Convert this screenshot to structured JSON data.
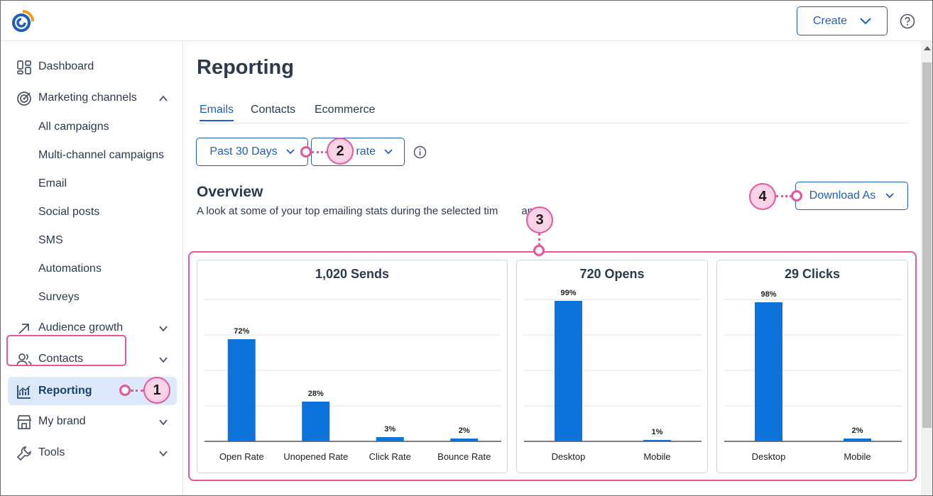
{
  "header": {
    "create_label": "Create"
  },
  "sidebar": {
    "items": [
      {
        "label": "Dashboard",
        "icon": "dashboard-icon"
      },
      {
        "label": "Marketing channels",
        "icon": "target-icon"
      },
      {
        "label": "Audience growth",
        "icon": "arrow-up-right-icon"
      },
      {
        "label": "Contacts",
        "icon": "people-icon"
      },
      {
        "label": "Reporting",
        "icon": "chart-icon"
      },
      {
        "label": "My brand",
        "icon": "store-icon"
      },
      {
        "label": "Tools",
        "icon": "wrench-icon"
      }
    ],
    "subitems": [
      "All campaigns",
      "Multi-channel campaigns",
      "Email",
      "Social posts",
      "SMS",
      "Automations",
      "Surveys"
    ]
  },
  "main": {
    "title": "Reporting",
    "tabs": [
      "Emails",
      "Contacts",
      "Ecommerce"
    ],
    "date_filter": "Past 30 Days",
    "rate_filter": "rate",
    "overview_title": "Overview",
    "overview_sub": "A look at some of your top emailing stats during the selected tim",
    "overview_sub_end": "ange.",
    "download_label": "Download As"
  },
  "callouts": [
    "1",
    "2",
    "3",
    "4"
  ],
  "colors": {
    "accent": "#1c5fbf",
    "bar": "#0b73d9",
    "highlight": "#e6569a"
  },
  "chart_data": [
    {
      "type": "bar",
      "title": "1,020 Sends",
      "categories": [
        "Open Rate",
        "Unopened Rate",
        "Click Rate",
        "Bounce Rate"
      ],
      "values": [
        72,
        28,
        3,
        2
      ],
      "labels": [
        "72%",
        "28%",
        "3%",
        "2%"
      ],
      "ylim": [
        0,
        100
      ]
    },
    {
      "type": "bar",
      "title": "720 Opens",
      "categories": [
        "Desktop",
        "Mobile"
      ],
      "values": [
        99,
        1
      ],
      "labels": [
        "99%",
        "1%"
      ],
      "ylim": [
        0,
        100
      ]
    },
    {
      "type": "bar",
      "title": "29 Clicks",
      "categories": [
        "Desktop",
        "Mobile"
      ],
      "values": [
        98,
        2
      ],
      "labels": [
        "98%",
        "2%"
      ],
      "ylim": [
        0,
        100
      ]
    }
  ]
}
